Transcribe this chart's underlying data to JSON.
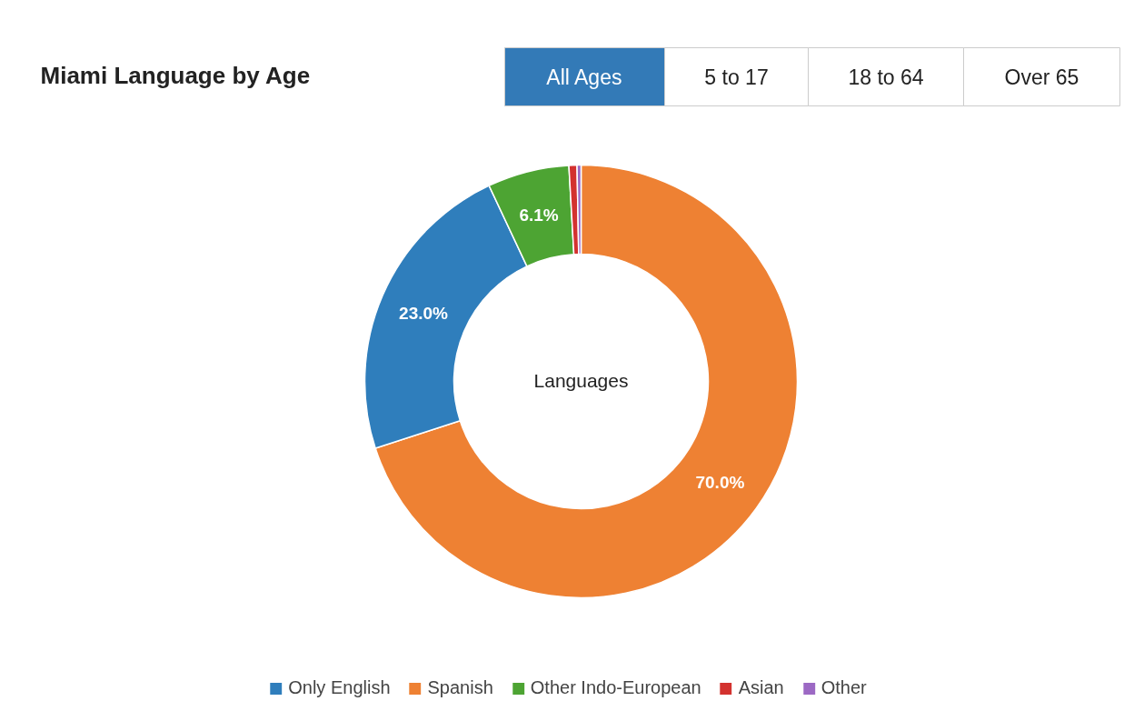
{
  "chart_data": {
    "type": "donut",
    "title": "Miami Language by Age",
    "categories": [
      "Only English",
      "Spanish",
      "Other Indo-European",
      "Asian",
      "Other"
    ],
    "values": [
      23.0,
      70.0,
      6.1,
      0.6,
      0.3
    ],
    "colors": [
      "#2f7ebc",
      "#ee8133",
      "#4da433",
      "#d3322f",
      "#9c69c4"
    ],
    "value_labels": [
      "23.0%",
      "70.0%",
      "6.1%",
      null,
      null
    ],
    "annotations": [
      "All Ages",
      "5 to 17",
      "18 to 64",
      "Over 65",
      "Languages"
    ],
    "legend": "bottom"
  }
}
